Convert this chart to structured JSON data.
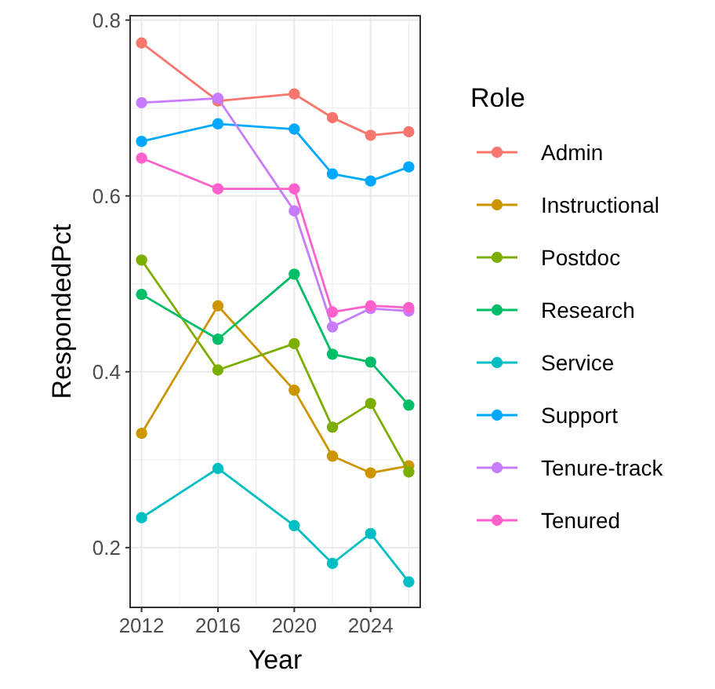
{
  "chart_data": {
    "type": "line",
    "xlabel": "Year",
    "ylabel": "RespondedPct",
    "legend_title": "Role",
    "x": [
      2012,
      2016,
      2020,
      2022,
      2024,
      2026
    ],
    "xlim": [
      2011.4,
      2026.6
    ],
    "xticks": [
      2012,
      2016,
      2020,
      2024
    ],
    "ylim": [
      0.132,
      0.805
    ],
    "yticks": [
      {
        "value": 0.2,
        "label": "0.2"
      },
      {
        "value": 0.4,
        "label": "0.4"
      },
      {
        "value": 0.6,
        "label": "0.6"
      },
      {
        "value": 0.8,
        "label": "0.8"
      }
    ],
    "grid": true,
    "legend": "right",
    "marker": "circle",
    "series": [
      {
        "name": "Admin",
        "color": "#f8766d",
        "values": [
          0.774,
          0.708,
          0.716,
          0.689,
          0.669,
          0.673
        ]
      },
      {
        "name": "Instructional",
        "color": "#cd9600",
        "values": [
          0.33,
          0.475,
          0.379,
          0.304,
          0.285,
          0.293
        ]
      },
      {
        "name": "Postdoc",
        "color": "#7cae00",
        "values": [
          0.527,
          0.402,
          0.432,
          0.337,
          0.364,
          0.286
        ]
      },
      {
        "name": "Research",
        "color": "#00be67",
        "values": [
          0.488,
          0.437,
          0.511,
          0.42,
          0.411,
          0.362
        ]
      },
      {
        "name": "Service",
        "color": "#00bfc4",
        "values": [
          0.234,
          0.29,
          0.225,
          0.182,
          0.216,
          0.161
        ]
      },
      {
        "name": "Support",
        "color": "#00a9ff",
        "values": [
          0.662,
          0.682,
          0.676,
          0.625,
          0.617,
          0.633
        ]
      },
      {
        "name": "Tenure-track",
        "color": "#c77cff",
        "values": [
          0.706,
          0.711,
          0.583,
          0.451,
          0.472,
          0.469
        ]
      },
      {
        "name": "Tenured",
        "color": "#ff61cc",
        "values": [
          0.643,
          0.608,
          0.608,
          0.468,
          0.475,
          0.473
        ]
      }
    ]
  }
}
